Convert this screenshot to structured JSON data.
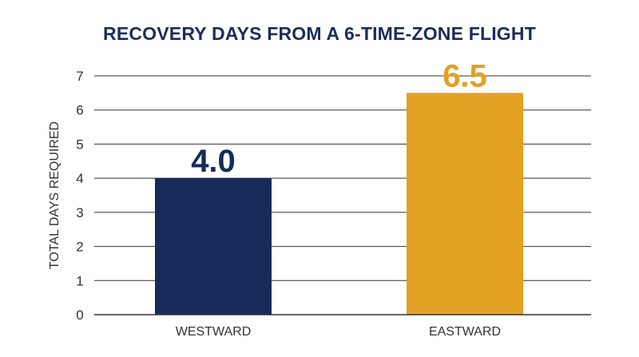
{
  "colors": {
    "title": "#1c2d5a",
    "text": "#333333",
    "grid": "#333333",
    "westward": "#172b59",
    "eastward": "#e2a124"
  },
  "chart_data": {
    "type": "bar",
    "title": "RECOVERY DAYS FROM A 6-TIME-ZONE FLIGHT",
    "xlabel": "",
    "ylabel": "TOTAL DAYS REQUIRED",
    "categories": [
      "WESTWARD",
      "EASTWARD"
    ],
    "values": [
      4.0,
      6.5
    ],
    "value_labels": [
      "4.0",
      "6.5"
    ],
    "ylim": [
      0,
      7
    ],
    "yticks": [
      0,
      1,
      2,
      3,
      4,
      5,
      6,
      7
    ],
    "grid": true,
    "legend": "none"
  }
}
